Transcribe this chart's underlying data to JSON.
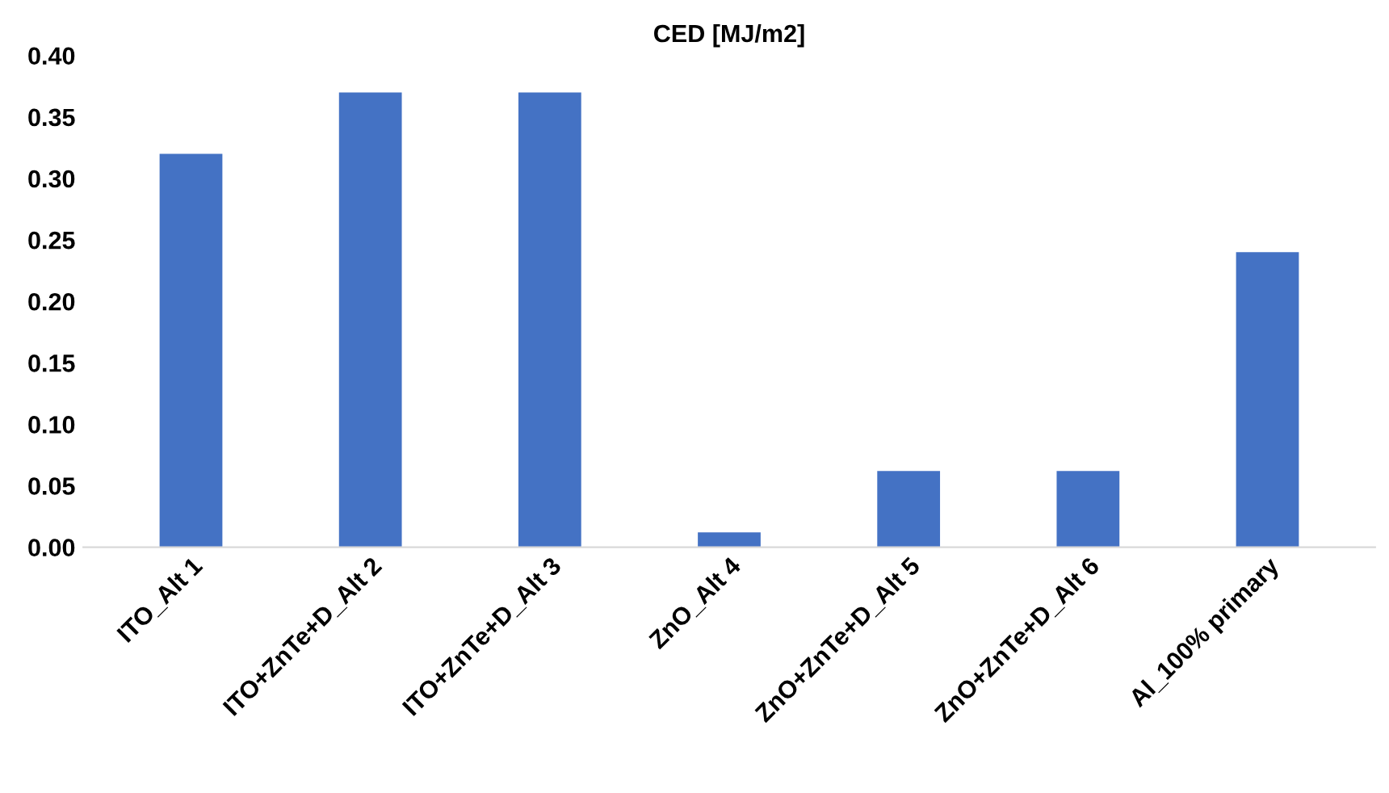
{
  "chart_data": {
    "type": "bar",
    "title": "CED [MJ/m2]",
    "categories": [
      "ITO_Alt 1",
      "ITO+ZnTe+D_Alt 2",
      "ITO+ZnTe+D_Alt 3",
      "ZnO_Alt 4",
      "ZnO+ZnTe+D_Alt 5",
      "ZnO+ZnTe+D_Alt 6",
      "Al_100% primary"
    ],
    "values": [
      0.32,
      0.37,
      0.37,
      0.012,
      0.062,
      0.062,
      0.24
    ],
    "color": "#4472c4",
    "ylim": [
      0,
      0.4
    ],
    "yticks": [
      {
        "value": 0,
        "label": "0.00"
      },
      {
        "value": 0.05,
        "label": "0.05"
      },
      {
        "value": 0.1,
        "label": "0.10"
      },
      {
        "value": 0.15,
        "label": "0.15"
      },
      {
        "value": 0.2,
        "label": "0.20"
      },
      {
        "value": 0.25,
        "label": "0.25"
      },
      {
        "value": 0.3,
        "label": "0.30"
      },
      {
        "value": 0.35,
        "label": "0.35"
      },
      {
        "value": 0.4,
        "label": "0.40"
      }
    ],
    "grid": false
  }
}
